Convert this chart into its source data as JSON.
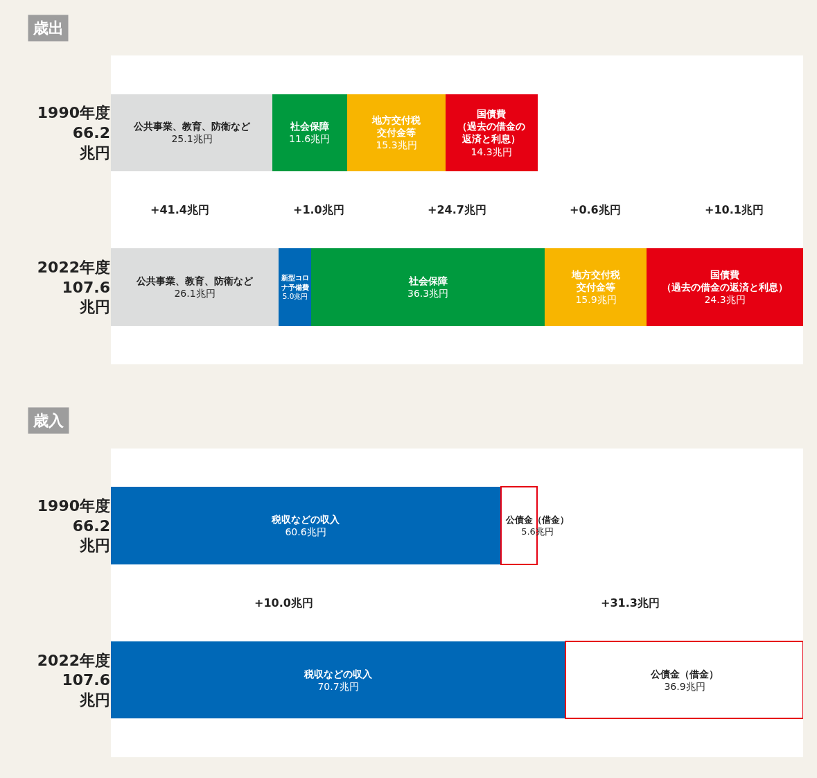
{
  "chart_data": [
    {
      "type": "bar",
      "title": "歳出",
      "orientation": "horizontal",
      "stacked": true,
      "tick_labels": "y",
      "categories": [
        "1990年度\n66.2\n兆円",
        "2022年度\n107.6\n兆円"
      ],
      "xlim": [
        0,
        107.6
      ],
      "series": [
        {
          "name": "公共事業、教育、防衛など",
          "color": "#dcdddd",
          "values": [
            25.1,
            26.1
          ],
          "value_labels": [
            "25.1兆円",
            "26.1兆円"
          ]
        },
        {
          "name": "新型コロナ予備費",
          "color": "#0068b7",
          "values": [
            null,
            5.0
          ],
          "value_labels": [
            null,
            "5.0兆円"
          ]
        },
        {
          "name": "社会保障",
          "color": "#009a3e",
          "values": [
            11.6,
            36.3
          ],
          "value_labels": [
            "11.6兆円",
            "36.3兆円"
          ]
        },
        {
          "name": "地方交付税交付金等",
          "color": "#f8b500",
          "values": [
            15.3,
            15.9
          ],
          "value_labels": [
            "15.3兆円",
            "15.9兆円"
          ]
        },
        {
          "name": "国債費（過去の借金の返済と利息）",
          "color": "#e60012",
          "values": [
            14.3,
            24.3
          ],
          "value_labels": [
            "14.3兆円",
            "24.3兆円"
          ]
        }
      ],
      "annotations": [
        "+41.4兆円",
        "+1.0兆円",
        "+24.7兆円",
        "+0.6兆円",
        "+10.1兆円"
      ]
    },
    {
      "type": "bar",
      "title": "歳入",
      "orientation": "horizontal",
      "stacked": true,
      "tick_labels": "y",
      "categories": [
        "1990年度\n66.2\n兆円",
        "2022年度\n107.6\n兆円"
      ],
      "xlim": [
        0,
        107.6
      ],
      "series": [
        {
          "name": "税収などの収入",
          "color": "#0068b7",
          "values": [
            60.6,
            70.7
          ],
          "value_labels": [
            "60.6兆円",
            "70.7兆円"
          ]
        },
        {
          "name": "公債金（借金）",
          "color": "#ffffff",
          "values": [
            5.6,
            36.9
          ],
          "value_labels": [
            "5.6兆円",
            "36.9兆円"
          ]
        }
      ],
      "annotations": [
        "+10.0兆円",
        "+31.3兆円"
      ]
    }
  ]
}
